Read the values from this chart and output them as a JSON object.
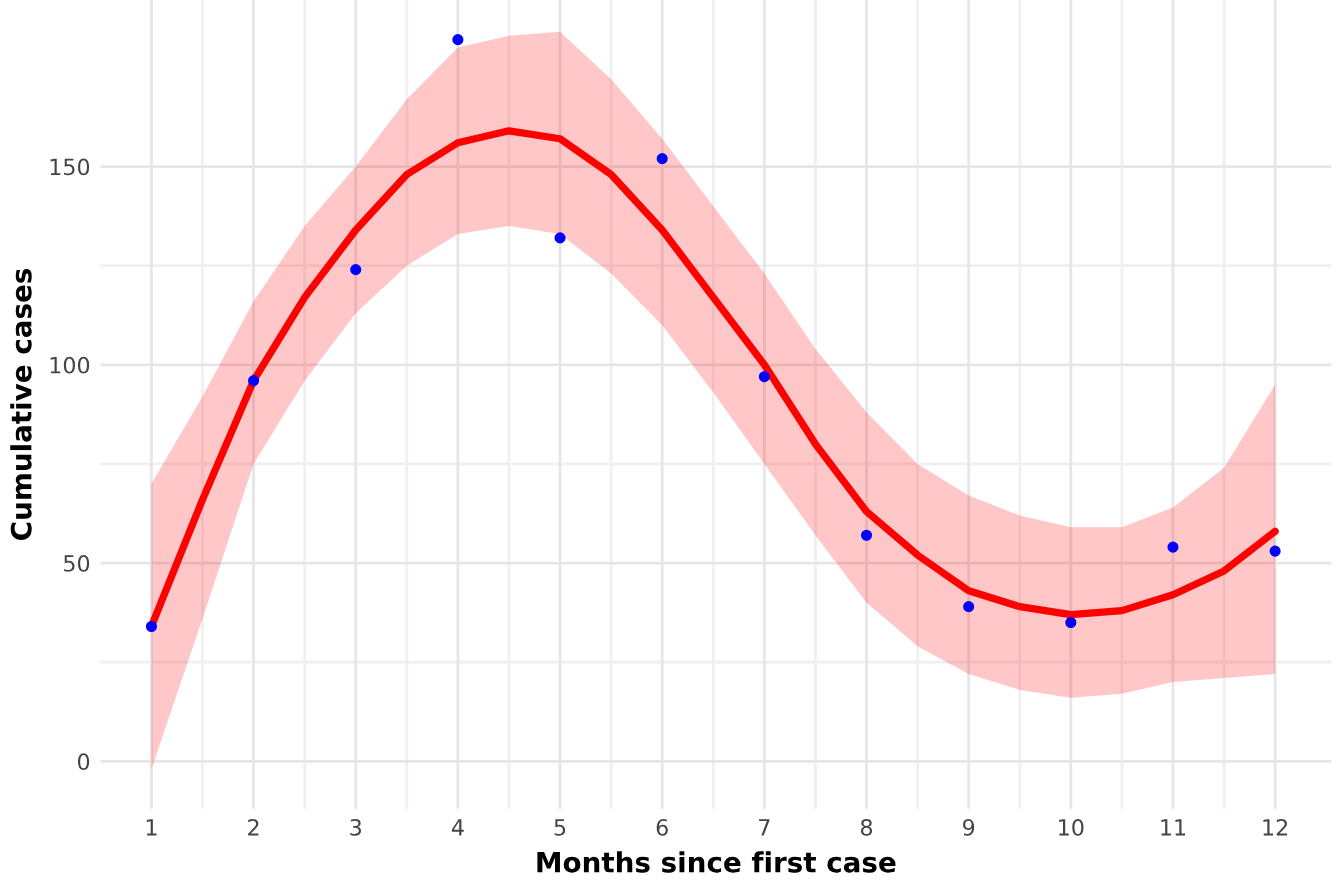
{
  "chart_data": {
    "type": "scatter",
    "xlabel": "Months since first case",
    "ylabel": "Cumulative cases",
    "xlim": [
      0.5,
      12.55
    ],
    "ylim": [
      -12,
      192
    ],
    "xticks": [
      1,
      2,
      3,
      4,
      5,
      6,
      7,
      8,
      9,
      10,
      11,
      12
    ],
    "yticks": [
      0,
      50,
      100,
      150
    ],
    "grid": true,
    "legend": false,
    "series": [
      {
        "color": "#0000ff",
        "marker": "circle",
        "x": [
          1,
          2,
          3,
          4,
          5,
          6,
          7,
          8,
          9,
          10,
          11,
          12
        ],
        "values": [
          34,
          96,
          124,
          182,
          132,
          152,
          97,
          57,
          39,
          35,
          54,
          53
        ]
      },
      {
        "type": "line",
        "color": "#ff0000",
        "line_style": "solid",
        "x": [
          1,
          1.5,
          2,
          2.5,
          3,
          3.5,
          4,
          4.5,
          5,
          5.5,
          6,
          6.5,
          7,
          7.5,
          8,
          8.5,
          9,
          9.5,
          10,
          10.5,
          11,
          11.5,
          12
        ],
        "values": [
          34,
          66,
          96,
          117,
          134,
          148,
          156,
          159,
          157,
          148,
          134,
          117,
          100,
          80,
          63,
          52,
          43,
          39,
          37,
          38,
          42,
          48,
          58
        ],
        "lower": [
          -2,
          36,
          75,
          96,
          113,
          125,
          133,
          135,
          133,
          123,
          110,
          93,
          75,
          57,
          40,
          29,
          22,
          18,
          16,
          17,
          20,
          21,
          22
        ],
        "upper": [
          70,
          92,
          116,
          135,
          150,
          167,
          180,
          183,
          184,
          172,
          157,
          140,
          123,
          104,
          88,
          75,
          67,
          62,
          59,
          59,
          64,
          74,
          95
        ]
      }
    ]
  }
}
